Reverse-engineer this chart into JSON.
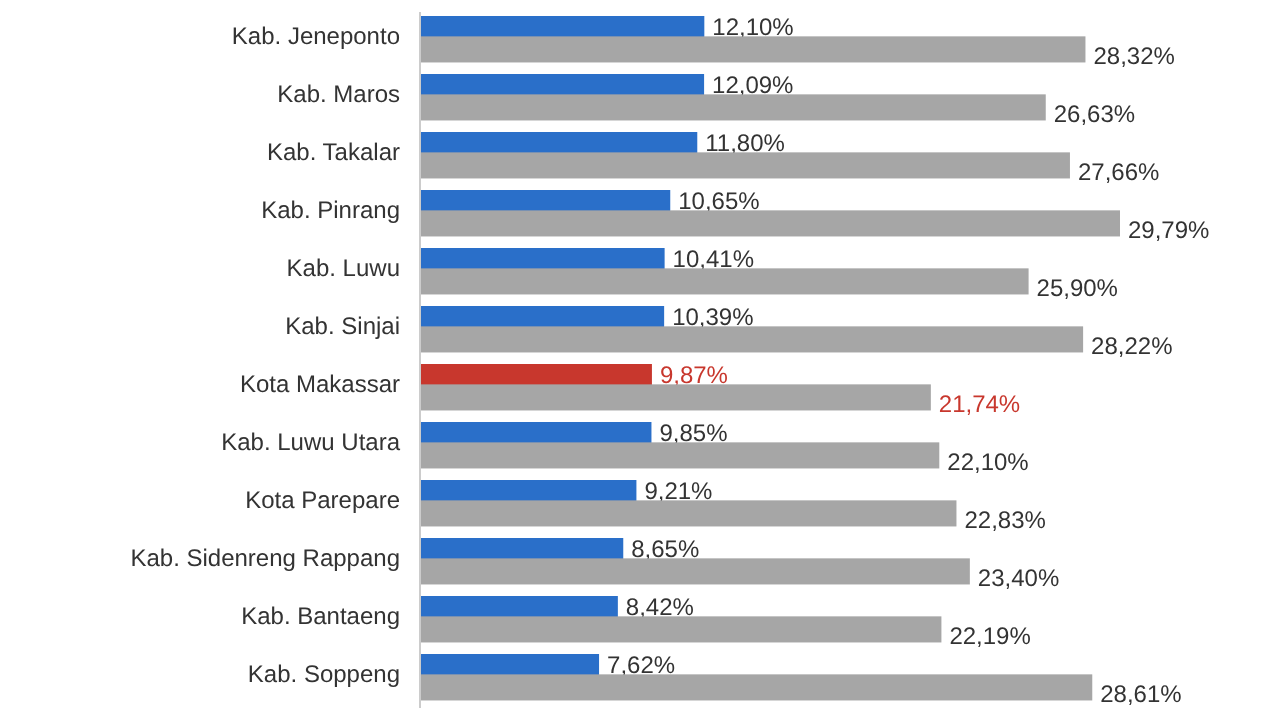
{
  "chart_data": {
    "type": "bar",
    "orientation": "horizontal",
    "categories": [
      "Kab. Jeneponto",
      "Kab. Maros",
      "Kab. Takalar",
      "Kab. Pinrang",
      "Kab. Luwu",
      "Kab. Sinjai",
      "Kota Makassar",
      "Kab. Luwu Utara",
      "Kota Parepare",
      "Kab. Sidenreng Rappang",
      "Kab. Bantaeng",
      "Kab. Soppeng"
    ],
    "series": [
      {
        "color": "#2a6fc9",
        "colors": [
          "#2a6fc9",
          "#2a6fc9",
          "#2a6fc9",
          "#2a6fc9",
          "#2a6fc9",
          "#2a6fc9",
          "#c8372d",
          "#2a6fc9",
          "#2a6fc9",
          "#2a6fc9",
          "#2a6fc9",
          "#2a6fc9"
        ],
        "values": [
          12.1,
          12.09,
          11.8,
          10.65,
          10.41,
          10.39,
          9.87,
          9.85,
          9.21,
          8.65,
          8.42,
          7.62
        ],
        "value_labels": [
          "12,10%",
          "12,09%",
          "11,80%",
          "10,65%",
          "10,41%",
          "10,39%",
          "9,87%",
          "9,85%",
          "9,21%",
          "8,65%",
          "8,42%",
          "7,62%"
        ]
      },
      {
        "color": "#a6a6a6",
        "values": [
          28.32,
          26.63,
          27.66,
          29.79,
          25.9,
          28.22,
          21.74,
          22.1,
          22.83,
          23.4,
          22.19,
          28.61
        ],
        "value_labels": [
          "28,32%",
          "26,63%",
          "27,66%",
          "29,79%",
          "25,90%",
          "28,22%",
          "21,74%",
          "22,10%",
          "22,83%",
          "23,40%",
          "22,19%",
          "28,61%"
        ]
      }
    ]
  }
}
